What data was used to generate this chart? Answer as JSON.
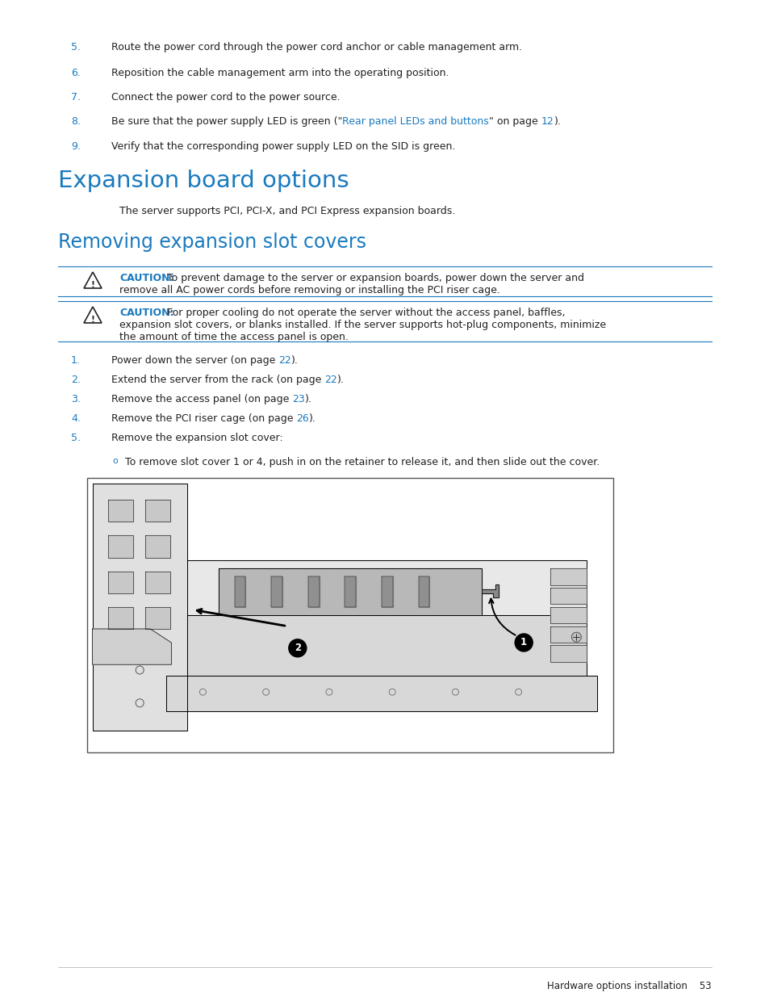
{
  "bg_color": "#ffffff",
  "title_color": "#1a7abf",
  "text_color": "#231f20",
  "link_color": "#1a7abf",
  "caution_color": "#1a7abf",
  "numbered_color": "#1a7abf",
  "bullet_color": "#1a7abf",
  "line_color": "#1a7abf",
  "footer_color": "#231f20",
  "items_top": [
    {
      "num": "5.",
      "text": "Route the power cord through the power cord anchor or cable management arm.",
      "has_link": false
    },
    {
      "num": "6.",
      "text": "Reposition the cable management arm into the operating position.",
      "has_link": false
    },
    {
      "num": "7.",
      "text": "Connect the power cord to the power source.",
      "has_link": false
    },
    {
      "num": "8.",
      "text_parts": [
        {
          "text": "Be sure that the power supply LED is green (\"",
          "color": "#231f20"
        },
        {
          "text": "Rear panel LEDs and buttons",
          "color": "#1a7abf"
        },
        {
          "text": "\" on page ",
          "color": "#231f20"
        },
        {
          "text": "12",
          "color": "#1a7abf"
        },
        {
          "text": ").",
          "color": "#231f20"
        }
      ],
      "has_link": true
    },
    {
      "num": "9.",
      "text": "Verify that the corresponding power supply LED on the SID is green.",
      "has_link": false
    }
  ],
  "section1_title": "Expansion board options",
  "section1_body": "The server supports PCI, PCI-X, and PCI Express expansion boards.",
  "section2_title": "Removing expansion slot covers",
  "caution1_bold": "CAUTION:",
  "caution1_line1": " To prevent damage to the server or expansion boards, power down the server and",
  "caution1_line2": "remove all AC power cords before removing or installing the PCI riser cage.",
  "caution2_bold": "CAUTION:",
  "caution2_line1": " For proper cooling do not operate the server without the access panel, baffles,",
  "caution2_line2": "expansion slot covers, or blanks installed. If the server supports hot-plug components, minimize",
  "caution2_line3": "the amount of time the access panel is open.",
  "steps": [
    {
      "num": "1.",
      "pre": "Power down the server (on page ",
      "link": "22",
      "post": ")."
    },
    {
      "num": "2.",
      "pre": "Extend the server from the rack (on page ",
      "link": "22",
      "post": ")."
    },
    {
      "num": "3.",
      "pre": "Remove the access panel (on page ",
      "link": "23",
      "post": ")."
    },
    {
      "num": "4.",
      "pre": "Remove the PCI riser cage (on page ",
      "link": "26",
      "post": ")."
    },
    {
      "num": "5.",
      "pre": "Remove the expansion slot cover:",
      "link": "",
      "post": ""
    }
  ],
  "sub_bullet": "To remove slot cover 1 or 4, push in on the retainer to release it, and then slide out the cover.",
  "footer_text": "Hardware options installation    53"
}
